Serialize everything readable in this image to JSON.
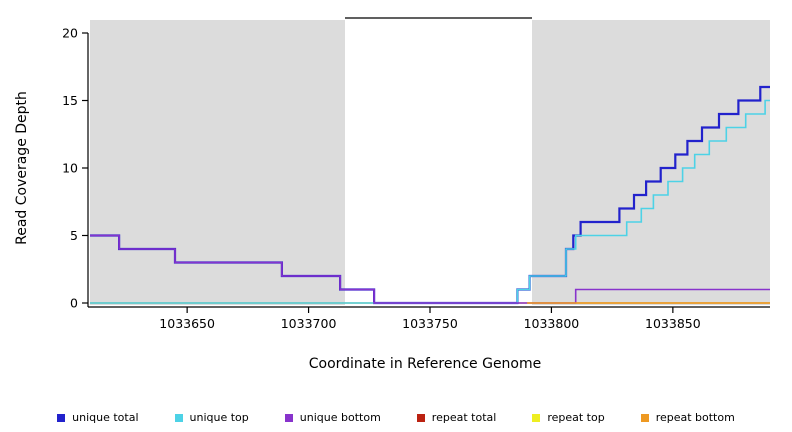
{
  "chart_data": {
    "type": "line",
    "subtype": "step-coverage",
    "title": "",
    "xlabel": "Coordinate in Reference Genome",
    "ylabel": "Read Coverage Depth",
    "xlim": [
      1033610,
      1033890
    ],
    "ylim": [
      0,
      21
    ],
    "x_ticks": [
      1033650,
      1033700,
      1033750,
      1033800,
      1033850
    ],
    "y_ticks": [
      0,
      5,
      10,
      15,
      20
    ],
    "grid": false,
    "background_color": "#ffffff",
    "shaded_regions": [
      {
        "name": "left-gray-region",
        "x_start": 1033610,
        "x_end": 1033715,
        "color": "#dcdcdc"
      },
      {
        "name": "right-gray-region",
        "x_start": 1033792,
        "x_end": 1033890,
        "color": "#dcdcdc"
      }
    ],
    "annotation_bar": {
      "x_start": 1033715,
      "x_end": 1033792,
      "y": 21,
      "color": "#000000"
    },
    "legend_position": "bottom",
    "series": [
      {
        "name": "unique total",
        "color": "#2222cc",
        "line_width": 2.2,
        "draw_order": 3,
        "x_end": 1033890,
        "points": [
          [
            1033610,
            5
          ],
          [
            1033622,
            4
          ],
          [
            1033645,
            3
          ],
          [
            1033689,
            2
          ],
          [
            1033713,
            1
          ],
          [
            1033727,
            0
          ],
          [
            1033786,
            1
          ],
          [
            1033791,
            2
          ],
          [
            1033806,
            4
          ],
          [
            1033809,
            5
          ],
          [
            1033812,
            6
          ],
          [
            1033828,
            7
          ],
          [
            1033834,
            8
          ],
          [
            1033839,
            9
          ],
          [
            1033845,
            10
          ],
          [
            1033851,
            11
          ],
          [
            1033856,
            12
          ],
          [
            1033862,
            13
          ],
          [
            1033869,
            14
          ],
          [
            1033877,
            15
          ],
          [
            1033886,
            16
          ]
        ]
      },
      {
        "name": "unique top",
        "color": "#4dd2e6",
        "line_width": 1.6,
        "draw_order": 4,
        "x_end": 1033890,
        "points": [
          [
            1033610,
            0
          ],
          [
            1033786,
            1
          ],
          [
            1033791,
            2
          ],
          [
            1033806,
            4
          ],
          [
            1033810,
            5
          ],
          [
            1033831,
            6
          ],
          [
            1033837,
            7
          ],
          [
            1033842,
            8
          ],
          [
            1033848,
            9
          ],
          [
            1033854,
            10
          ],
          [
            1033859,
            11
          ],
          [
            1033865,
            12
          ],
          [
            1033872,
            13
          ],
          [
            1033880,
            14
          ],
          [
            1033888,
            15
          ]
        ]
      },
      {
        "name": "unique bottom",
        "color": "#8833cc",
        "line_width": 1.6,
        "draw_order": 5,
        "x_end": 1033890,
        "points": [
          [
            1033610,
            5
          ],
          [
            1033622,
            4
          ],
          [
            1033645,
            3
          ],
          [
            1033689,
            2
          ],
          [
            1033713,
            1
          ],
          [
            1033727,
            0
          ],
          [
            1033810,
            1
          ]
        ]
      },
      {
        "name": "repeat total",
        "color": "#bb2211",
        "line_width": 1.2,
        "draw_order": 1,
        "x_end": 1033890,
        "points": [
          [
            1033610,
            0
          ]
        ]
      },
      {
        "name": "repeat top",
        "color": "#eeee22",
        "line_width": 1.2,
        "draw_order": 2,
        "x_end": 1033890,
        "points": [
          [
            1033610,
            0
          ]
        ]
      },
      {
        "name": "repeat bottom",
        "color": "#ee9922",
        "line_width": 1.4,
        "draw_order": 6,
        "x_end": 1033890,
        "points": [
          [
            1033790,
            0
          ]
        ]
      }
    ]
  }
}
